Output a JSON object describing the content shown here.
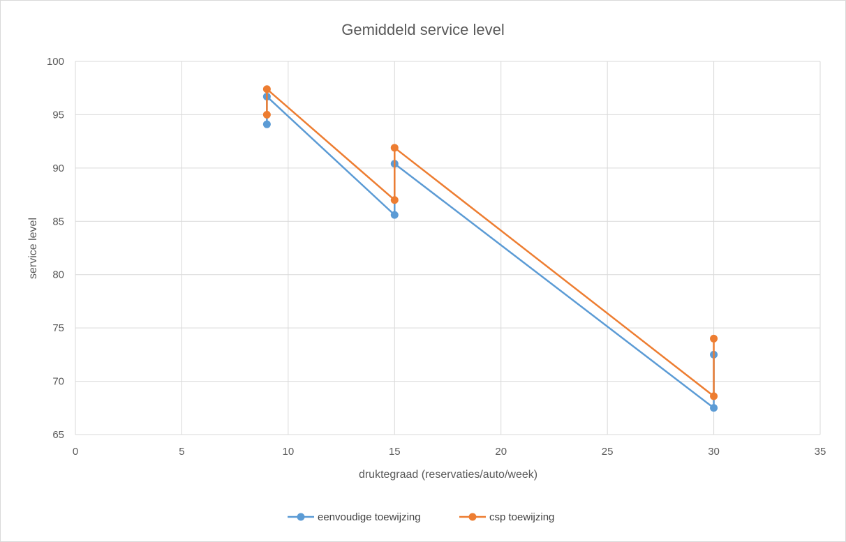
{
  "chart_data": {
    "type": "scatter",
    "title": "Gemiddeld service level",
    "xlabel": "druktegraad (reservaties/auto/week)",
    "ylabel": "service level",
    "xlim": [
      0,
      35
    ],
    "ylim": [
      65,
      100
    ],
    "x_ticks": [
      "0",
      "5",
      "10",
      "15",
      "20",
      "25",
      "30",
      "35"
    ],
    "y_ticks": [
      "65",
      "70",
      "75",
      "80",
      "85",
      "90",
      "95",
      "100"
    ],
    "grid": true,
    "legend_position": "bottom",
    "series": [
      {
        "name": "eenvoudige toewijzing",
        "color": "#5b9bd5",
        "points": [
          [
            9,
            94.1
          ],
          [
            9,
            96.7
          ],
          [
            15,
            85.6
          ],
          [
            15,
            90.4
          ],
          [
            30,
            67.5
          ],
          [
            30,
            72.5
          ]
        ]
      },
      {
        "name": "csp toewijzing",
        "color": "#ed7d31",
        "points": [
          [
            9,
            95.0
          ],
          [
            9,
            97.4
          ],
          [
            15,
            87.0
          ],
          [
            15,
            91.9
          ],
          [
            30,
            68.6
          ],
          [
            30,
            74.0
          ]
        ]
      }
    ]
  }
}
